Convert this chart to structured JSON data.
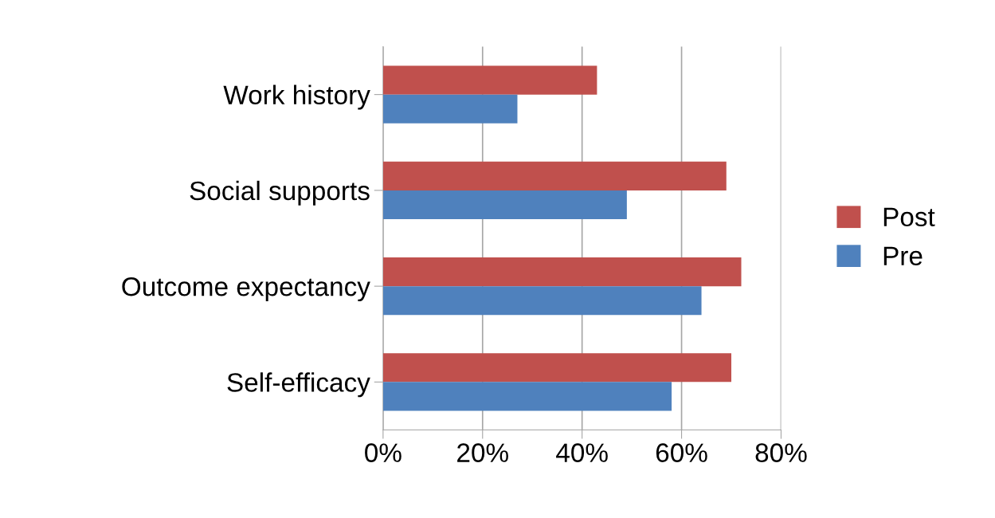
{
  "chart_data": {
    "type": "bar",
    "orientation": "horizontal",
    "categories": [
      "Work history",
      "Social supports",
      "Outcome expectancy",
      "Self-efficacy"
    ],
    "series": [
      {
        "name": "Post",
        "color": "#c0504d",
        "values": [
          43,
          69,
          72,
          70
        ]
      },
      {
        "name": "Pre",
        "color": "#4f81bd",
        "values": [
          27,
          49,
          64,
          58
        ]
      }
    ],
    "xlim": [
      0,
      80
    ],
    "xticks": [
      {
        "value": 0,
        "label": "0%"
      },
      {
        "value": 20,
        "label": "20%"
      },
      {
        "value": 40,
        "label": "40%"
      },
      {
        "value": 60,
        "label": "60%"
      },
      {
        "value": 80,
        "label": "80%"
      }
    ],
    "grid": "x",
    "legend": "right"
  }
}
